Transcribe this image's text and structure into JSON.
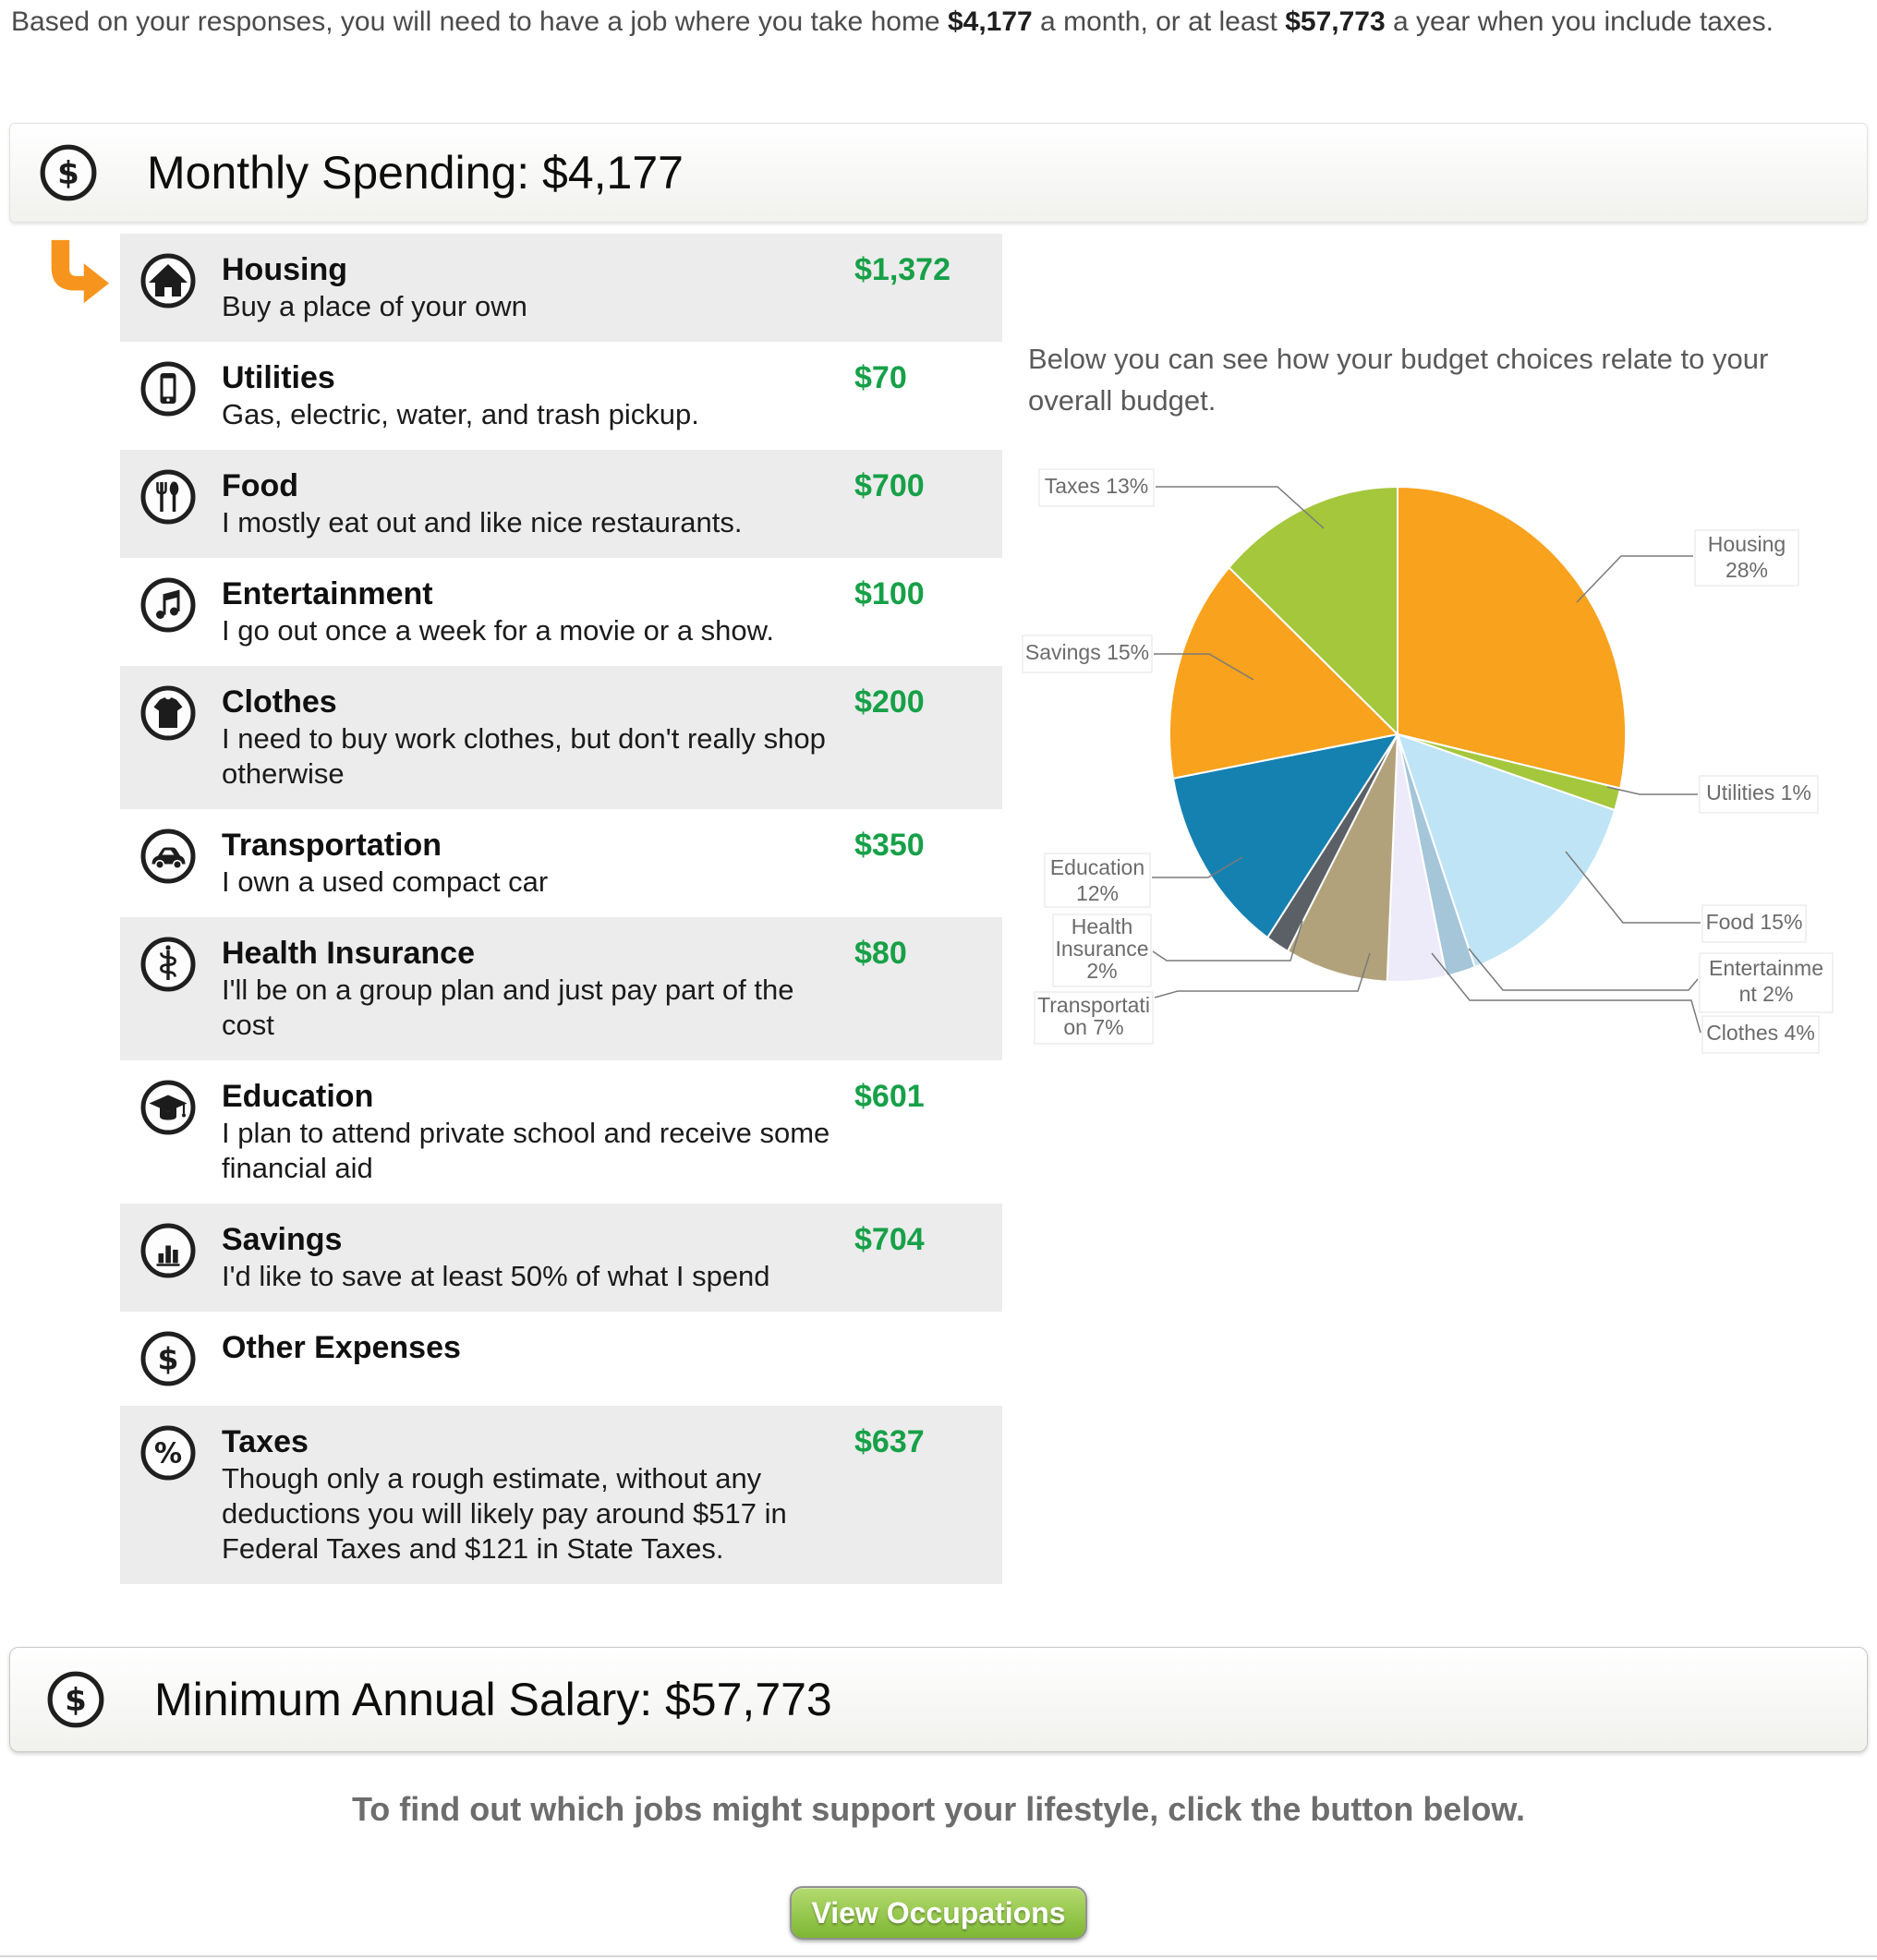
{
  "intro": {
    "part1": "Based on your responses, you will need to have a job where you take home ",
    "monthly_amount": "$4,177",
    "part2": " a month, or at least ",
    "annual_amount": "$57,773",
    "part3": " a year when you include taxes."
  },
  "monthly_header": {
    "title": "Monthly Spending: $4,177",
    "icon": "dollar-coin-icon"
  },
  "categories": [
    {
      "name": "Housing",
      "description": "Buy a place of your own",
      "amount": "$1,372",
      "icon": "house-icon"
    },
    {
      "name": "Utilities",
      "description": "Gas, electric, water, and trash pickup.",
      "amount": "$70",
      "icon": "phone-icon"
    },
    {
      "name": "Food",
      "description": "I mostly eat out and like nice restaurants.",
      "amount": "$700",
      "icon": "utensils-icon"
    },
    {
      "name": "Entertainment",
      "description": "I go out once a week for a movie or a show.",
      "amount": "$100",
      "icon": "music-notes-icon"
    },
    {
      "name": "Clothes",
      "description": "I need to buy work clothes, but don't really shop otherwise",
      "amount": "$200",
      "icon": "tshirt-icon"
    },
    {
      "name": "Transportation",
      "description": "I own a used compact car",
      "amount": "$350",
      "icon": "car-icon"
    },
    {
      "name": "Health Insurance",
      "description": "I'll be on a group plan and just pay part of the cost",
      "amount": "$80",
      "icon": "caduceus-icon"
    },
    {
      "name": "Education",
      "description": "I plan to attend private school and receive some financial aid",
      "amount": "$601",
      "icon": "graduation-cap-icon"
    },
    {
      "name": "Savings",
      "description": "I'd like to save at least 50% of what I spend",
      "amount": "$704",
      "icon": "bar-chart-icon"
    },
    {
      "name": "Other Expenses",
      "description": "",
      "amount": "",
      "icon": "dollar-icon"
    },
    {
      "name": "Taxes",
      "description": "Though only a rough estimate, without any deductions you will likely pay around $517 in Federal Taxes and $121 in State Taxes.",
      "amount": "$637",
      "icon": "percent-icon"
    }
  ],
  "chart_data": {
    "type": "pie",
    "title": "Below you can see how your budget choices relate to your overall budget.",
    "legend_position": "outside-callouts",
    "slices": [
      {
        "label": "Housing",
        "value": 1372,
        "pct": "28%",
        "display_lines": [
          "Housing",
          "28%"
        ],
        "color": "#F9A21D"
      },
      {
        "label": "Utilities",
        "value": 70,
        "pct": "1%",
        "display_lines": [
          "Utilities 1%"
        ],
        "color": "#A4C73C"
      },
      {
        "label": "Food",
        "value": 700,
        "pct": "15%",
        "display_lines": [
          "Food 15%"
        ],
        "color": "#BEE4F6"
      },
      {
        "label": "Entertainment",
        "value": 100,
        "pct": "2%",
        "display_lines": [
          "Entertainme",
          "nt 2%"
        ],
        "color": "#A5C6D9"
      },
      {
        "label": "Clothes",
        "value": 200,
        "pct": "4%",
        "display_lines": [
          "Clothes 4%"
        ],
        "color": "#EDEBF9"
      },
      {
        "label": "Transportation",
        "value": 350,
        "pct": "7%",
        "display_lines": [
          "Transportati",
          "on 7%"
        ],
        "color": "#B2A27B"
      },
      {
        "label": "Health Insurance",
        "value": 80,
        "pct": "2%",
        "display_lines": [
          "Health",
          "Insurance",
          "2%"
        ],
        "color": "#5A6066"
      },
      {
        "label": "Education",
        "value": 601,
        "pct": "12%",
        "display_lines": [
          "Education",
          "12%"
        ],
        "color": "#1581B0"
      },
      {
        "label": "Savings",
        "value": 704,
        "pct": "15%",
        "display_lines": [
          "Savings 15%"
        ],
        "color": "#F9A21D"
      },
      {
        "label": "Taxes",
        "value": 637,
        "pct": "13%",
        "display_lines": [
          "Taxes 13%"
        ],
        "color": "#A4C73C"
      }
    ]
  },
  "salary_header": {
    "title": "Minimum Annual Salary: $57,773",
    "icon": "dollar-coin-icon"
  },
  "footer": {
    "cta_text": "To find out which jobs might support your lifestyle, click the button below.",
    "button_label": "View Occupations"
  },
  "colors": {
    "amount_green": "#17A048",
    "arrow_orange": "#F7941E",
    "row_shade": "#ececec",
    "button_green": "#7db733",
    "label_gray": "#6b6b6b"
  }
}
